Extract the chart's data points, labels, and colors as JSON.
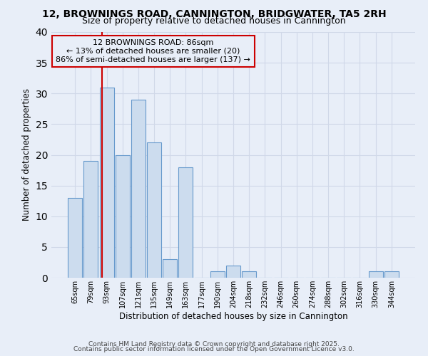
{
  "title1": "12, BROWNINGS ROAD, CANNINGTON, BRIDGWATER, TA5 2RH",
  "title2": "Size of property relative to detached houses in Cannington",
  "xlabel": "Distribution of detached houses by size in Cannington",
  "ylabel": "Number of detached properties",
  "categories": [
    "65sqm",
    "79sqm",
    "93sqm",
    "107sqm",
    "121sqm",
    "135sqm",
    "149sqm",
    "163sqm",
    "177sqm",
    "190sqm",
    "204sqm",
    "218sqm",
    "232sqm",
    "246sqm",
    "260sqm",
    "274sqm",
    "288sqm",
    "302sqm",
    "316sqm",
    "330sqm",
    "344sqm"
  ],
  "values": [
    13,
    19,
    31,
    20,
    29,
    22,
    3,
    18,
    0,
    1,
    2,
    1,
    0,
    0,
    0,
    0,
    0,
    0,
    0,
    1,
    1
  ],
  "bar_color": "#ccdcee",
  "bar_edge_color": "#6699cc",
  "vline_x": 1.72,
  "vline_color": "#cc0000",
  "annotation_title": "12 BROWNINGS ROAD: 86sqm",
  "annotation_line2": "← 13% of detached houses are smaller (20)",
  "annotation_line3": "86% of semi-detached houses are larger (137) →",
  "annotation_box_color": "#cc0000",
  "ylim": [
    0,
    40
  ],
  "yticks": [
    0,
    5,
    10,
    15,
    20,
    25,
    30,
    35,
    40
  ],
  "footnote1": "Contains HM Land Registry data © Crown copyright and database right 2025.",
  "footnote2": "Contains public sector information licensed under the Open Government Licence v3.0.",
  "bg_color": "#e8eef8",
  "grid_color": "#d0d8e8"
}
